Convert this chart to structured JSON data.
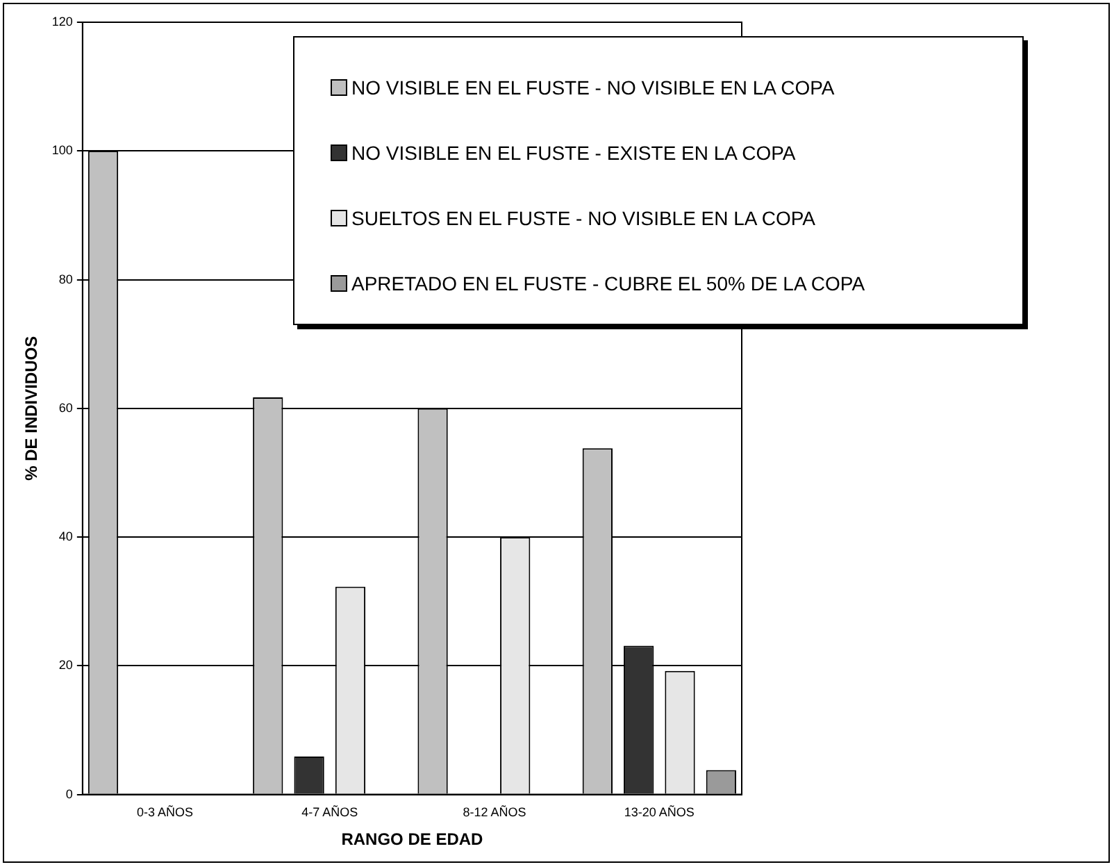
{
  "chart_data": {
    "type": "bar",
    "xlabel": "RANGO DE EDAD",
    "ylabel": "% DE INDIVIDUOS",
    "categories": [
      "0-3 AÑOS",
      "4-7 AÑOS",
      "8-12 AÑOS",
      "13-20 AÑOS"
    ],
    "series": [
      {
        "name": "NO VISIBLE EN EL FUSTE - NO VISIBLE EN LA COPA",
        "color": "#c0c0c0",
        "values": [
          100,
          61.7,
          60,
          53.8
        ]
      },
      {
        "name": "NO VISIBLE EN EL FUSTE - EXISTE EN LA COPA",
        "color": "#333333",
        "values": [
          0,
          5.9,
          0,
          23.1
        ]
      },
      {
        "name": "SUELTOS EN EL FUSTE - NO VISIBLE EN LA COPA",
        "color": "#e6e6e6",
        "values": [
          0,
          32.3,
          40,
          19.2
        ]
      },
      {
        "name": "APRETADO EN EL FUSTE - CUBRE EL 50% DE LA COPA",
        "color": "#9a9a9a",
        "values": [
          0,
          0,
          0,
          3.8
        ]
      }
    ],
    "ylim": [
      0,
      120
    ],
    "yticks": [
      0,
      20,
      40,
      60,
      80,
      100,
      120
    ],
    "grid": "y",
    "legend": "top right"
  }
}
